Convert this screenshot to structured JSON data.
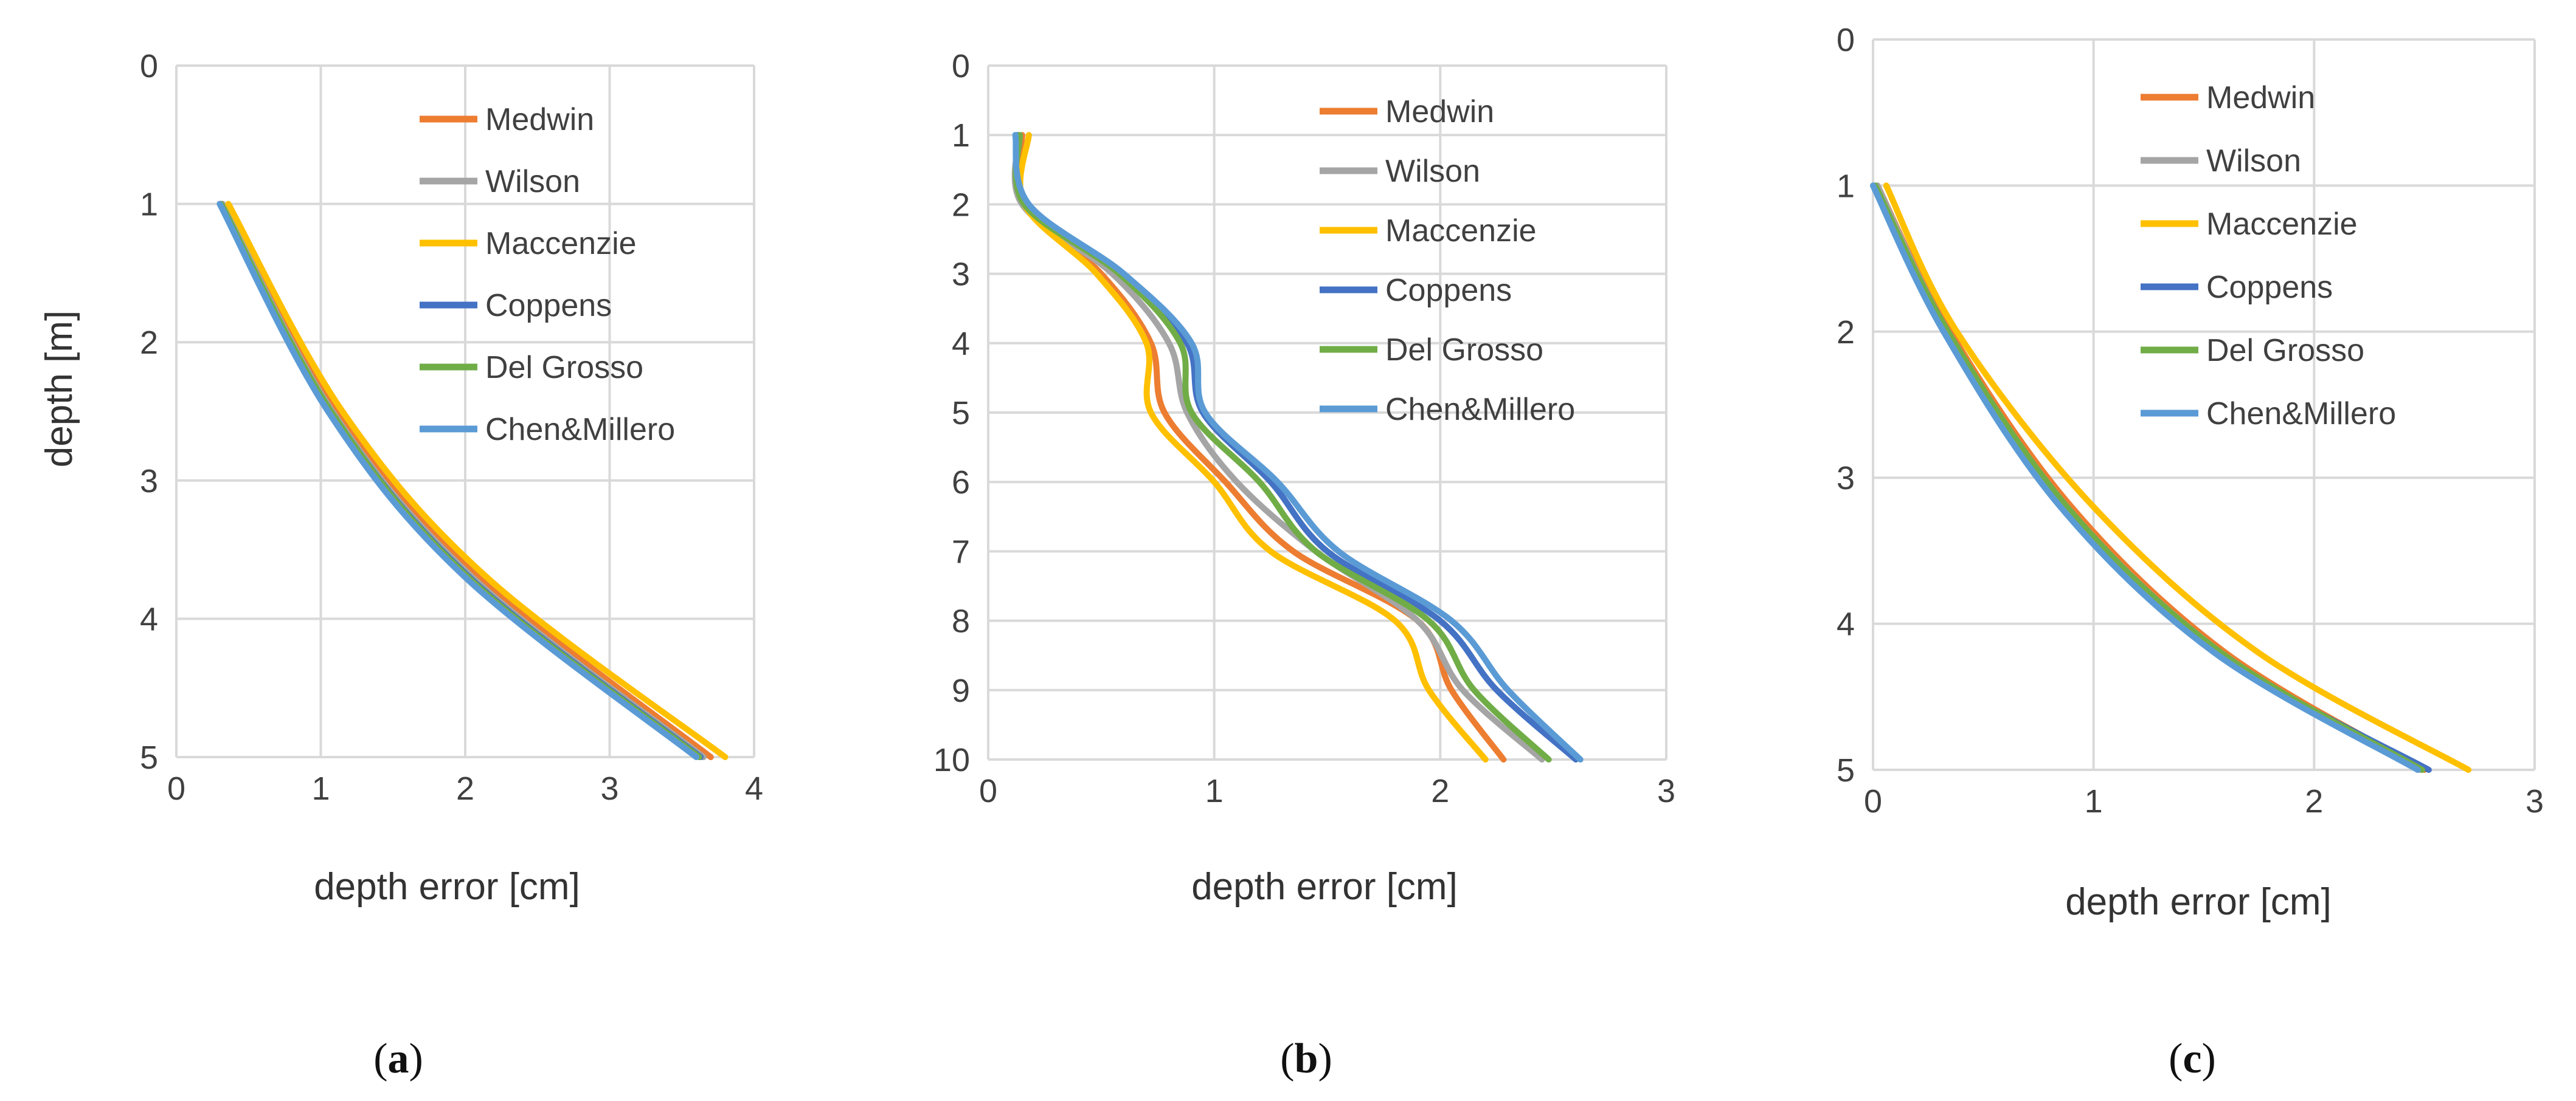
{
  "colors": {
    "Medwin": "#ED7D31",
    "Wilson": "#A5A5A5",
    "Maccenzie": "#FFC000",
    "Coppens": "#4472C4",
    "Del Grosso": "#70AD47",
    "Chen&Millero": "#5B9BD5"
  },
  "chart_data": [
    {
      "type": "line",
      "caption": "a",
      "xlabel": "depth error [cm]",
      "ylabel": "depth [m]",
      "xlim": [
        0,
        4
      ],
      "ylim": [
        0,
        5
      ],
      "y_inverted": true,
      "xticks": [
        "0",
        "1",
        "2",
        "3",
        "4"
      ],
      "yticks": [
        "0",
        "1",
        "2",
        "3",
        "4",
        "5"
      ],
      "legend": [
        "Medwin",
        "Wilson",
        "Maccenzie",
        "Coppens",
        "Del Grosso",
        "Chen&Millero"
      ],
      "series": [
        {
          "name": "Medwin",
          "points": [
            [
              0.32,
              1
            ],
            [
              1.1,
              2.5
            ],
            [
              2.1,
              3.7
            ],
            [
              3.7,
              5
            ]
          ]
        },
        {
          "name": "Wilson",
          "points": [
            [
              0.32,
              1
            ],
            [
              1.08,
              2.5
            ],
            [
              2.05,
              3.7
            ],
            [
              3.65,
              5
            ]
          ]
        },
        {
          "name": "Maccenzie",
          "points": [
            [
              0.36,
              1
            ],
            [
              1.15,
              2.5
            ],
            [
              2.15,
              3.7
            ],
            [
              3.8,
              5
            ]
          ]
        },
        {
          "name": "Coppens",
          "points": [
            [
              0.31,
              1
            ],
            [
              1.07,
              2.5
            ],
            [
              2.03,
              3.7
            ],
            [
              3.63,
              5
            ]
          ]
        },
        {
          "name": "Del Grosso",
          "points": [
            [
              0.31,
              1
            ],
            [
              1.07,
              2.5
            ],
            [
              2.02,
              3.7
            ],
            [
              3.62,
              5
            ]
          ]
        },
        {
          "name": "Chen&Millero",
          "points": [
            [
              0.3,
              1
            ],
            [
              1.05,
              2.5
            ],
            [
              2,
              3.7
            ],
            [
              3.6,
              5
            ]
          ]
        }
      ]
    },
    {
      "type": "line",
      "caption": "b",
      "xlabel": "depth error [cm]",
      "ylabel": "",
      "xlim": [
        0,
        3
      ],
      "ylim": [
        0,
        10
      ],
      "y_inverted": true,
      "xticks": [
        "0",
        "1",
        "2",
        "3"
      ],
      "yticks": [
        "0",
        "1",
        "2",
        "3",
        "4",
        "5",
        "6",
        "7",
        "8",
        "9",
        "10"
      ],
      "legend": [
        "Medwin",
        "Wilson",
        "Maccenzie",
        "Coppens",
        "Del Grosso",
        "Chen&Millero"
      ],
      "series": [
        {
          "name": "Medwin",
          "points": [
            [
              0.15,
              1
            ],
            [
              0.16,
              2
            ],
            [
              0.5,
              3
            ],
            [
              0.72,
              4
            ],
            [
              0.78,
              5
            ],
            [
              1.05,
              6
            ],
            [
              1.35,
              7
            ],
            [
              1.9,
              8
            ],
            [
              2.05,
              9
            ],
            [
              2.28,
              10
            ]
          ]
        },
        {
          "name": "Wilson",
          "points": [
            [
              0.14,
              1
            ],
            [
              0.15,
              2
            ],
            [
              0.55,
              3
            ],
            [
              0.8,
              4
            ],
            [
              0.88,
              5
            ],
            [
              1.1,
              6
            ],
            [
              1.45,
              7
            ],
            [
              1.9,
              8
            ],
            [
              2.1,
              9
            ],
            [
              2.45,
              10
            ]
          ]
        },
        {
          "name": "Maccenzie",
          "points": [
            [
              0.18,
              1
            ],
            [
              0.16,
              2
            ],
            [
              0.48,
              3
            ],
            [
              0.7,
              4
            ],
            [
              0.72,
              5
            ],
            [
              1.0,
              6
            ],
            [
              1.25,
              7
            ],
            [
              1.8,
              8
            ],
            [
              1.95,
              9
            ],
            [
              2.2,
              10
            ]
          ]
        },
        {
          "name": "Coppens",
          "points": [
            [
              0.13,
              1
            ],
            [
              0.17,
              2
            ],
            [
              0.6,
              3
            ],
            [
              0.88,
              4
            ],
            [
              0.95,
              5
            ],
            [
              1.25,
              6
            ],
            [
              1.5,
              7
            ],
            [
              2.0,
              8
            ],
            [
              2.25,
              9
            ],
            [
              2.6,
              10
            ]
          ]
        },
        {
          "name": "Del Grosso",
          "points": [
            [
              0.14,
              1
            ],
            [
              0.16,
              2
            ],
            [
              0.58,
              3
            ],
            [
              0.85,
              4
            ],
            [
              0.9,
              5
            ],
            [
              1.2,
              6
            ],
            [
              1.45,
              7
            ],
            [
              1.95,
              8
            ],
            [
              2.15,
              9
            ],
            [
              2.48,
              10
            ]
          ]
        },
        {
          "name": "Chen&Millero",
          "points": [
            [
              0.12,
              1
            ],
            [
              0.18,
              2
            ],
            [
              0.6,
              3
            ],
            [
              0.9,
              4
            ],
            [
              0.96,
              5
            ],
            [
              1.28,
              6
            ],
            [
              1.55,
              7
            ],
            [
              2.05,
              8
            ],
            [
              2.3,
              9
            ],
            [
              2.62,
              10
            ]
          ]
        }
      ]
    },
    {
      "type": "line",
      "caption": "c",
      "xlabel": "depth error [cm]",
      "ylabel": "",
      "xlim": [
        0,
        3
      ],
      "ylim": [
        0,
        5
      ],
      "y_inverted": true,
      "xticks": [
        "0",
        "1",
        "2",
        "3"
      ],
      "yticks": [
        "0",
        "1",
        "2",
        "3",
        "4",
        "5"
      ],
      "legend": [
        "Medwin",
        "Wilson",
        "Maccenzie",
        "Coppens",
        "Del Grosso",
        "Chen&Millero"
      ],
      "series": [
        {
          "name": "Medwin",
          "points": [
            [
              0.02,
              1
            ],
            [
              0.35,
              2
            ],
            [
              0.9,
              3.2
            ],
            [
              1.6,
              4.2
            ],
            [
              2.5,
              5
            ]
          ]
        },
        {
          "name": "Wilson",
          "points": [
            [
              0.02,
              1
            ],
            [
              0.34,
              2
            ],
            [
              0.88,
              3.2
            ],
            [
              1.58,
              4.2
            ],
            [
              2.48,
              5
            ]
          ]
        },
        {
          "name": "Maccenzie",
          "points": [
            [
              0.06,
              1
            ],
            [
              0.38,
              2
            ],
            [
              1.0,
              3.2
            ],
            [
              1.75,
              4.2
            ],
            [
              2.7,
              5
            ]
          ]
        },
        {
          "name": "Coppens",
          "points": [
            [
              0.01,
              1
            ],
            [
              0.33,
              2
            ],
            [
              0.86,
              3.2
            ],
            [
              1.56,
              4.2
            ],
            [
              2.52,
              5
            ]
          ]
        },
        {
          "name": "Del Grosso",
          "points": [
            [
              0.01,
              1
            ],
            [
              0.34,
              2
            ],
            [
              0.88,
              3.2
            ],
            [
              1.58,
              4.2
            ],
            [
              2.49,
              5
            ]
          ]
        },
        {
          "name": "Chen&Millero",
          "points": [
            [
              0.0,
              1
            ],
            [
              0.32,
              2
            ],
            [
              0.85,
              3.2
            ],
            [
              1.55,
              4.2
            ],
            [
              2.47,
              5
            ]
          ]
        }
      ]
    }
  ]
}
